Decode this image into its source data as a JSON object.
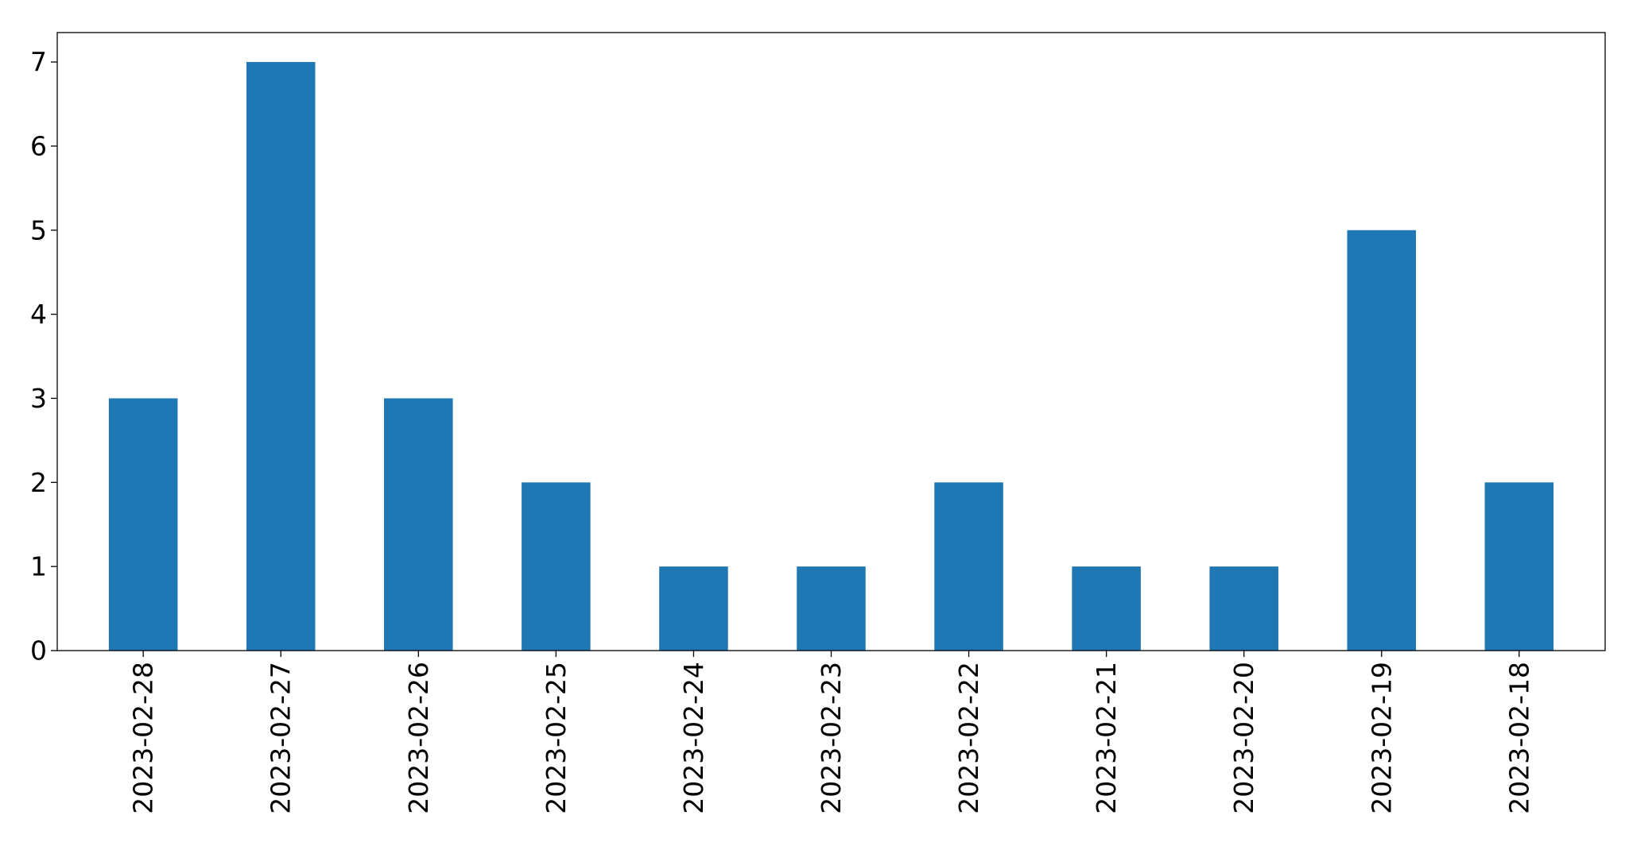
{
  "chart_data": {
    "type": "bar",
    "title": "",
    "xlabel": "",
    "ylabel": "",
    "categories": [
      "2023-02-28",
      "2023-02-27",
      "2023-02-26",
      "2023-02-25",
      "2023-02-24",
      "2023-02-23",
      "2023-02-22",
      "2023-02-21",
      "2023-02-20",
      "2023-02-19",
      "2023-02-18"
    ],
    "values": [
      3,
      7,
      3,
      2,
      1,
      1,
      2,
      1,
      1,
      5,
      2
    ],
    "ylim": [
      0,
      7.35
    ],
    "yticks": [
      "0",
      "1",
      "2",
      "3",
      "4",
      "5",
      "6",
      "7"
    ],
    "bar_color": "#1f77b4",
    "grid": false,
    "legend": "none"
  }
}
